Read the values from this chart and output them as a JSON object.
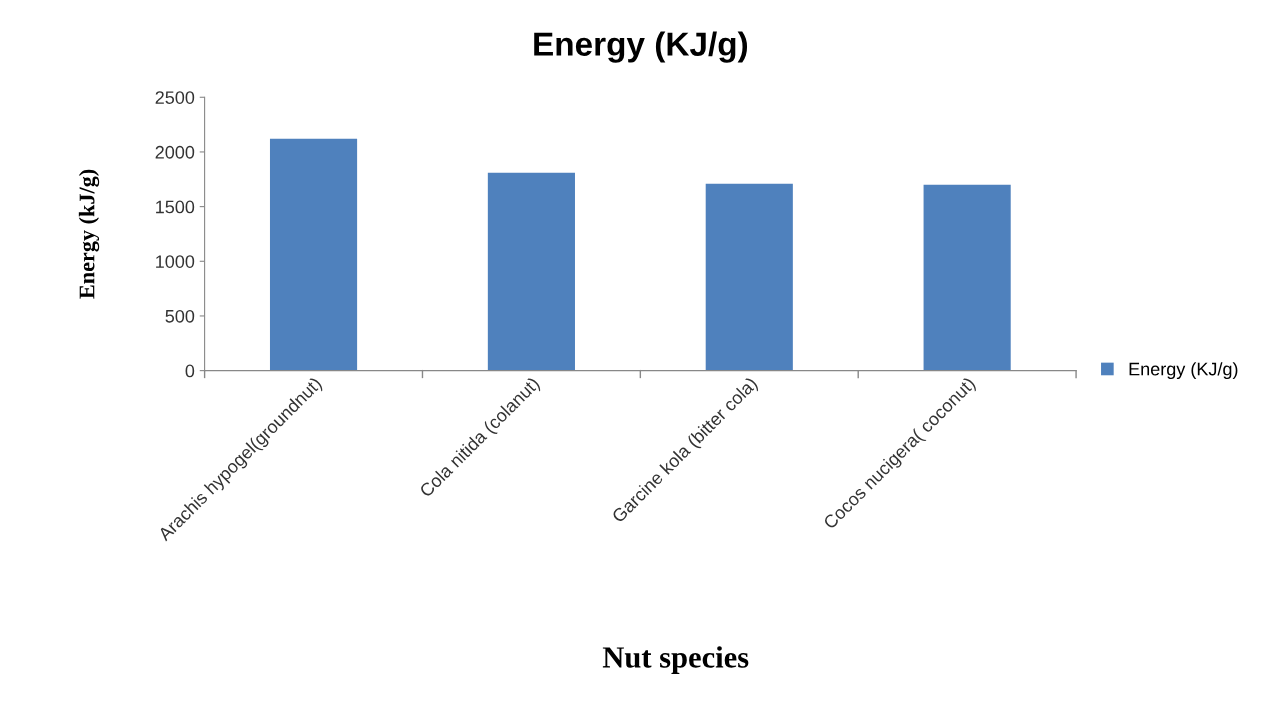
{
  "chart_data": {
    "type": "bar",
    "title": "Energy (KJ/g)",
    "xlabel": "Nut species",
    "ylabel": "Energy (kJ/g)",
    "categories": [
      "Arachis hypogel(groundnut)",
      "Cola nitida (colanut)",
      "Garcine kola (bitter cola)",
      "Cocos nucigera( coconut)"
    ],
    "series": [
      {
        "name": "Energy (KJ/g)",
        "color": "#4f81bd",
        "values": [
          2120,
          1810,
          1710,
          1700
        ]
      }
    ],
    "ylim": [
      0,
      2500
    ],
    "yticks": [
      0,
      500,
      1000,
      1500,
      2000,
      2500
    ],
    "grid": false,
    "legend": "right"
  }
}
